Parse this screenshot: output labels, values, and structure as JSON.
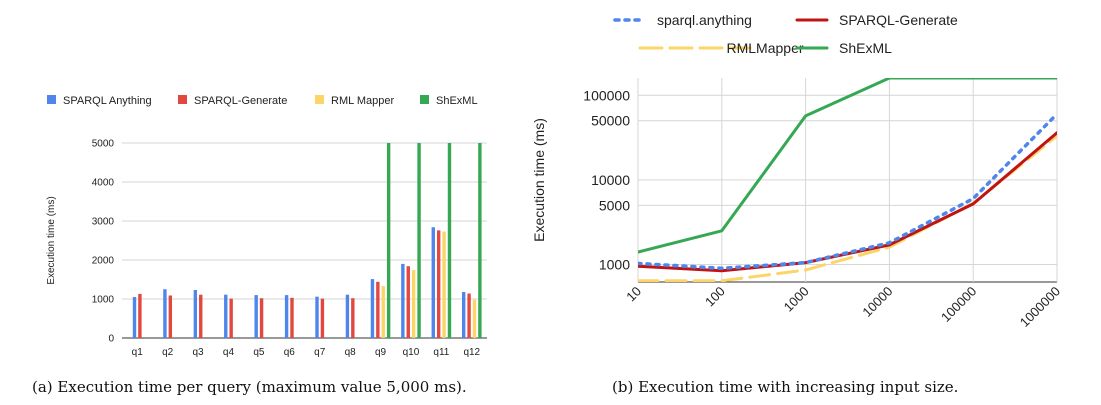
{
  "captions": {
    "a": "(a) Execution time per query (maximum value 5,000 ms).",
    "b": "(b) Execution time with increasing input size."
  },
  "chart_data": [
    {
      "type": "bar",
      "ylabel": "Execution time (ms)",
      "xlabel": "",
      "ylim": [
        0,
        5000
      ],
      "yticks": [
        0,
        1000,
        2000,
        3000,
        4000,
        5000
      ],
      "grid": true,
      "legend_position": "top",
      "categories": [
        "q1",
        "q2",
        "q3",
        "q4",
        "q5",
        "q6",
        "q7",
        "q8",
        "q9",
        "q10",
        "q11",
        "q12"
      ],
      "series": [
        {
          "name": "SPARQL Anything",
          "color": "#4e86ec",
          "values": [
            1050,
            1250,
            1230,
            1110,
            1100,
            1100,
            1060,
            1110,
            1510,
            1900,
            2840,
            1180
          ]
        },
        {
          "name": "SPARQL-Generate",
          "color": "#e2483f",
          "values": [
            1130,
            1090,
            1110,
            1010,
            1020,
            1030,
            1010,
            1020,
            1440,
            1840,
            2760,
            1140
          ]
        },
        {
          "name": "RML Mapper",
          "color": "#fbd568",
          "values": [
            null,
            null,
            null,
            null,
            null,
            null,
            null,
            null,
            1330,
            1740,
            2730,
            980
          ]
        },
        {
          "name": "ShExML",
          "color": "#36a853",
          "values": [
            null,
            null,
            null,
            null,
            null,
            null,
            null,
            null,
            5000,
            5000,
            5000,
            5000
          ]
        }
      ]
    },
    {
      "type": "line",
      "ylabel": "Execution time (ms)",
      "xlabel": "",
      "xscale": "log",
      "yscale": "log",
      "x": [
        10,
        100,
        1000,
        10000,
        100000,
        1000000
      ],
      "xticklabels": [
        "10",
        "100",
        "1000",
        "10000",
        "100000",
        "1000000"
      ],
      "yticks": [
        1000,
        5000,
        10000,
        50000,
        100000
      ],
      "yticklabels": [
        "1000",
        "5000",
        "10000",
        "50000",
        "100000"
      ],
      "ylim": [
        620,
        160000
      ],
      "grid": true,
      "legend_position": "top",
      "series": [
        {
          "name": "sparql.anything",
          "color": "#4e86ec",
          "style": "dotted",
          "values": [
            1030,
            900,
            1050,
            1800,
            6000,
            60000
          ]
        },
        {
          "name": "SPARQL-Generate",
          "color": "#c01414",
          "style": "solid",
          "values": [
            950,
            840,
            1050,
            1700,
            5200,
            36000
          ]
        },
        {
          "name": "RMLMapper",
          "color": "#fbd568",
          "style": "dashed",
          "values": [
            640,
            640,
            860,
            1600,
            5300,
            33000
          ]
        },
        {
          "name": "ShExML",
          "color": "#36a853",
          "style": "solid",
          "values": [
            1400,
            2500,
            57000,
            160000,
            160000,
            160000
          ]
        }
      ]
    }
  ]
}
